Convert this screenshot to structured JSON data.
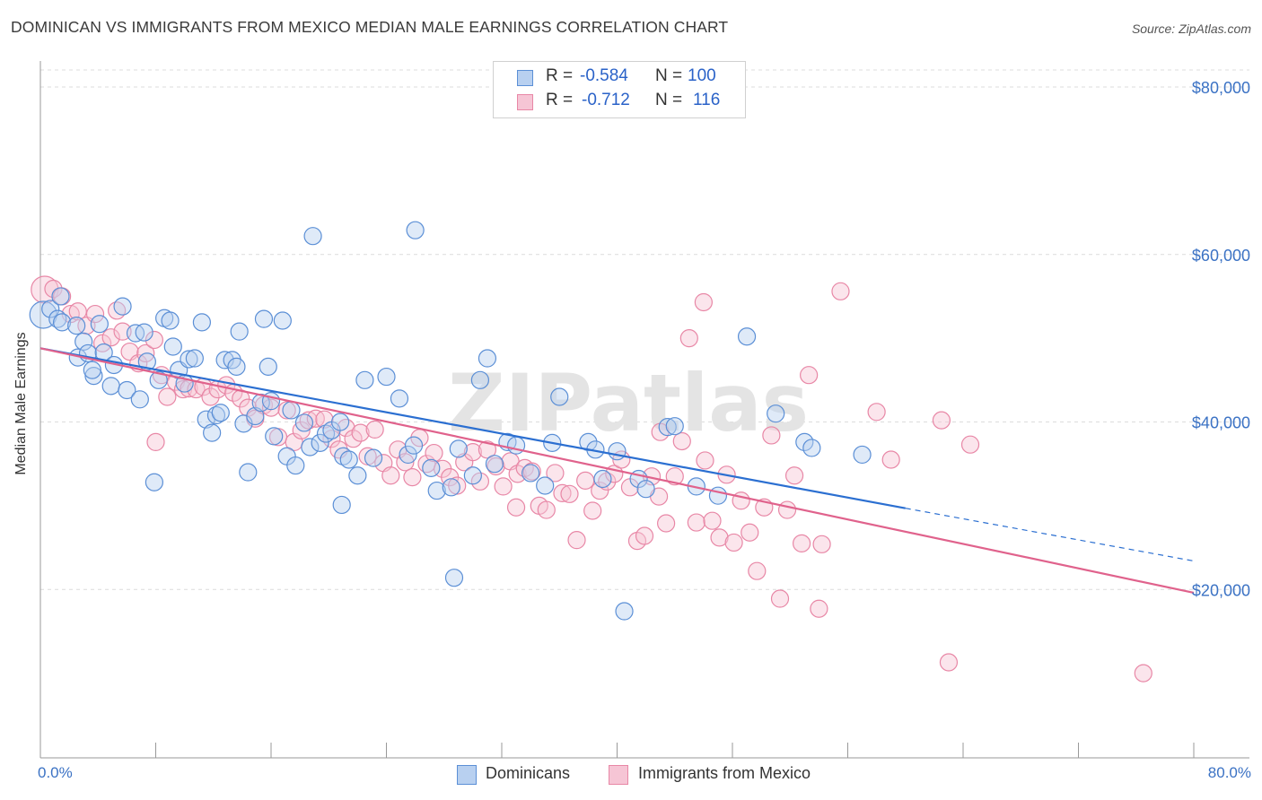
{
  "title": "DOMINICAN VS IMMIGRANTS FROM MEXICO MEDIAN MALE EARNINGS CORRELATION CHART",
  "source": "Source: ZipAtlas.com",
  "colors": {
    "blue": "#5b8fd6",
    "blue_fill": "#b8d0f0",
    "blue_line": "#2b6fd1",
    "pink": "#e887a6",
    "pink_fill": "#f6c5d5",
    "pink_line": "#e0628c",
    "axis_label": "#3b72c4"
  },
  "legend": {
    "r_label": "R =",
    "n_label": "N =",
    "row1": {
      "r": "-0.584",
      "n": "100"
    },
    "row2": {
      "r": "-0.712",
      "n": "116"
    }
  },
  "bottom_legend": {
    "series1": "Dominicans",
    "series2": "Immigrants from Mexico"
  },
  "watermark": "ZIPatlas",
  "chart_data": {
    "type": "scatter",
    "xlabel": "",
    "ylabel": "Median Male Earnings",
    "xlim": [
      0,
      80
    ],
    "ylim": [
      0,
      82000
    ],
    "x_tick_labels": {
      "left": "0.0%",
      "right": "80.0%"
    },
    "y_ticks": [
      20000,
      40000,
      60000,
      80000
    ],
    "y_tick_labels": [
      "$20,000",
      "$40,000",
      "$60,000",
      "$80,000"
    ],
    "grid": "horizontal dashed",
    "series": [
      {
        "name": "Dominicans",
        "trend": {
          "x0": 0,
          "y0": 48800,
          "x1": 60,
          "y1": 29700,
          "dashed_to_x": 80,
          "dashed_to_y": 23400
        },
        "points": [
          [
            0.2,
            52800
          ],
          [
            0.7,
            53500
          ],
          [
            1.2,
            52300
          ],
          [
            1.5,
            51900
          ],
          [
            1.4,
            55000
          ],
          [
            2.5,
            51500
          ],
          [
            3.0,
            49600
          ],
          [
            2.6,
            47700
          ],
          [
            3.3,
            48200
          ],
          [
            3.7,
            45500
          ],
          [
            4.1,
            51700
          ],
          [
            4.4,
            48300
          ],
          [
            4.9,
            44300
          ],
          [
            5.1,
            46800
          ],
          [
            5.7,
            53800
          ],
          [
            6.0,
            43800
          ],
          [
            6.6,
            50600
          ],
          [
            6.9,
            42700
          ],
          [
            7.4,
            47200
          ],
          [
            7.9,
            32800
          ],
          [
            8.2,
            45000
          ],
          [
            8.6,
            52400
          ],
          [
            9.0,
            52100
          ],
          [
            9.2,
            49000
          ],
          [
            9.6,
            46200
          ],
          [
            10.0,
            44600
          ],
          [
            10.3,
            47500
          ],
          [
            10.7,
            47600
          ],
          [
            11.2,
            51900
          ],
          [
            11.5,
            40300
          ],
          [
            11.9,
            38700
          ],
          [
            12.2,
            40800
          ],
          [
            12.5,
            41100
          ],
          [
            12.8,
            47400
          ],
          [
            13.3,
            47400
          ],
          [
            13.6,
            46600
          ],
          [
            13.8,
            50800
          ],
          [
            14.1,
            39800
          ],
          [
            14.4,
            34000
          ],
          [
            14.9,
            40700
          ],
          [
            15.3,
            42300
          ],
          [
            15.5,
            52300
          ],
          [
            15.8,
            46600
          ],
          [
            16.2,
            38300
          ],
          [
            16.8,
            52100
          ],
          [
            17.1,
            35900
          ],
          [
            17.4,
            41400
          ],
          [
            17.7,
            34800
          ],
          [
            18.3,
            39900
          ],
          [
            18.7,
            37000
          ],
          [
            18.9,
            62200
          ],
          [
            19.4,
            37500
          ],
          [
            19.8,
            38600
          ],
          [
            20.2,
            39000
          ],
          [
            20.8,
            40000
          ],
          [
            21.0,
            35900
          ],
          [
            21.4,
            35500
          ],
          [
            22.0,
            33600
          ],
          [
            22.5,
            45000
          ],
          [
            23.1,
            35700
          ],
          [
            24.0,
            45400
          ],
          [
            24.9,
            42800
          ],
          [
            25.5,
            36100
          ],
          [
            25.9,
            37200
          ],
          [
            26.0,
            62900
          ],
          [
            27.1,
            34500
          ],
          [
            27.5,
            31800
          ],
          [
            28.5,
            32200
          ],
          [
            29.0,
            36800
          ],
          [
            30.0,
            33600
          ],
          [
            30.5,
            45000
          ],
          [
            31.0,
            47600
          ],
          [
            31.5,
            35000
          ],
          [
            32.4,
            37600
          ],
          [
            33.0,
            37200
          ],
          [
            34.0,
            33900
          ],
          [
            35.0,
            32400
          ],
          [
            35.5,
            37500
          ],
          [
            36.0,
            43000
          ],
          [
            28.7,
            21400
          ],
          [
            38.0,
            37600
          ],
          [
            38.5,
            36700
          ],
          [
            39.0,
            33200
          ],
          [
            40.0,
            36500
          ],
          [
            40.5,
            17400
          ],
          [
            41.5,
            33200
          ],
          [
            42.0,
            32000
          ],
          [
            43.5,
            39400
          ],
          [
            44.0,
            39500
          ],
          [
            45.5,
            32300
          ],
          [
            47.0,
            31200
          ],
          [
            49.0,
            50200
          ],
          [
            51.0,
            41000
          ],
          [
            53.0,
            37600
          ],
          [
            53.5,
            36900
          ],
          [
            57.0,
            36100
          ],
          [
            16.0,
            42500
          ],
          [
            7.2,
            50700
          ],
          [
            3.6,
            46200
          ],
          [
            20.9,
            30100
          ]
        ]
      },
      {
        "name": "Immigrants from Mexico",
        "trend": {
          "x0": 0,
          "y0": 48800,
          "x1": 80,
          "y1": 19600
        },
        "points": [
          [
            0.3,
            55800
          ],
          [
            0.9,
            55900
          ],
          [
            1.5,
            55000
          ],
          [
            2.1,
            52900
          ],
          [
            2.6,
            53200
          ],
          [
            3.2,
            51500
          ],
          [
            3.8,
            52900
          ],
          [
            4.3,
            49400
          ],
          [
            4.9,
            50100
          ],
          [
            5.3,
            53300
          ],
          [
            5.7,
            50800
          ],
          [
            6.2,
            48400
          ],
          [
            6.8,
            47000
          ],
          [
            7.3,
            48200
          ],
          [
            7.9,
            49800
          ],
          [
            8.4,
            45600
          ],
          [
            8.8,
            43000
          ],
          [
            9.4,
            44800
          ],
          [
            9.9,
            43900
          ],
          [
            10.3,
            44000
          ],
          [
            10.8,
            43900
          ],
          [
            11.3,
            44200
          ],
          [
            11.8,
            43000
          ],
          [
            12.3,
            43900
          ],
          [
            12.9,
            44400
          ],
          [
            13.4,
            43500
          ],
          [
            13.9,
            42800
          ],
          [
            14.4,
            41700
          ],
          [
            14.9,
            40400
          ],
          [
            15.5,
            42000
          ],
          [
            16.0,
            41700
          ],
          [
            16.5,
            38200
          ],
          [
            17.1,
            41400
          ],
          [
            17.6,
            37600
          ],
          [
            18.1,
            39000
          ],
          [
            18.6,
            40200
          ],
          [
            19.1,
            40400
          ],
          [
            19.7,
            40300
          ],
          [
            20.2,
            38000
          ],
          [
            20.7,
            36700
          ],
          [
            21.2,
            39300
          ],
          [
            21.7,
            38000
          ],
          [
            22.2,
            38700
          ],
          [
            22.7,
            35900
          ],
          [
            23.2,
            39100
          ],
          [
            23.8,
            35100
          ],
          [
            24.3,
            33600
          ],
          [
            24.8,
            36700
          ],
          [
            25.3,
            35200
          ],
          [
            25.8,
            33400
          ],
          [
            26.3,
            38100
          ],
          [
            26.8,
            35000
          ],
          [
            27.3,
            36300
          ],
          [
            27.9,
            34400
          ],
          [
            28.4,
            33400
          ],
          [
            28.9,
            32400
          ],
          [
            29.4,
            35200
          ],
          [
            30.0,
            36400
          ],
          [
            30.5,
            32900
          ],
          [
            31.0,
            36700
          ],
          [
            31.6,
            34700
          ],
          [
            32.1,
            32300
          ],
          [
            32.6,
            35300
          ],
          [
            33.1,
            33800
          ],
          [
            33.6,
            34500
          ],
          [
            34.1,
            34100
          ],
          [
            34.6,
            30000
          ],
          [
            35.1,
            29500
          ],
          [
            35.7,
            33900
          ],
          [
            36.2,
            31500
          ],
          [
            36.7,
            31400
          ],
          [
            37.2,
            25900
          ],
          [
            37.8,
            33000
          ],
          [
            38.3,
            29400
          ],
          [
            38.8,
            31800
          ],
          [
            39.3,
            32900
          ],
          [
            39.8,
            33800
          ],
          [
            40.3,
            35500
          ],
          [
            40.9,
            32200
          ],
          [
            41.4,
            25800
          ],
          [
            41.9,
            26400
          ],
          [
            42.4,
            33500
          ],
          [
            42.9,
            31100
          ],
          [
            43.4,
            27900
          ],
          [
            44.0,
            33500
          ],
          [
            44.5,
            37700
          ],
          [
            45.0,
            50000
          ],
          [
            45.5,
            28000
          ],
          [
            46.1,
            35400
          ],
          [
            46.6,
            28200
          ],
          [
            47.1,
            26200
          ],
          [
            47.6,
            33700
          ],
          [
            48.1,
            25600
          ],
          [
            48.6,
            30600
          ],
          [
            49.2,
            26800
          ],
          [
            49.7,
            22200
          ],
          [
            50.2,
            29800
          ],
          [
            50.7,
            38400
          ],
          [
            51.3,
            18900
          ],
          [
            51.8,
            29500
          ],
          [
            52.3,
            33600
          ],
          [
            52.8,
            25500
          ],
          [
            53.3,
            45600
          ],
          [
            54.0,
            17700
          ],
          [
            55.5,
            55600
          ],
          [
            58.0,
            41200
          ],
          [
            59.0,
            35500
          ],
          [
            62.5,
            40200
          ],
          [
            63.0,
            11300
          ],
          [
            64.5,
            37300
          ],
          [
            76.5,
            10000
          ],
          [
            46.0,
            54300
          ],
          [
            8.0,
            37600
          ],
          [
            33.0,
            29800
          ],
          [
            43.0,
            38800
          ],
          [
            54.2,
            25400
          ]
        ]
      }
    ]
  }
}
